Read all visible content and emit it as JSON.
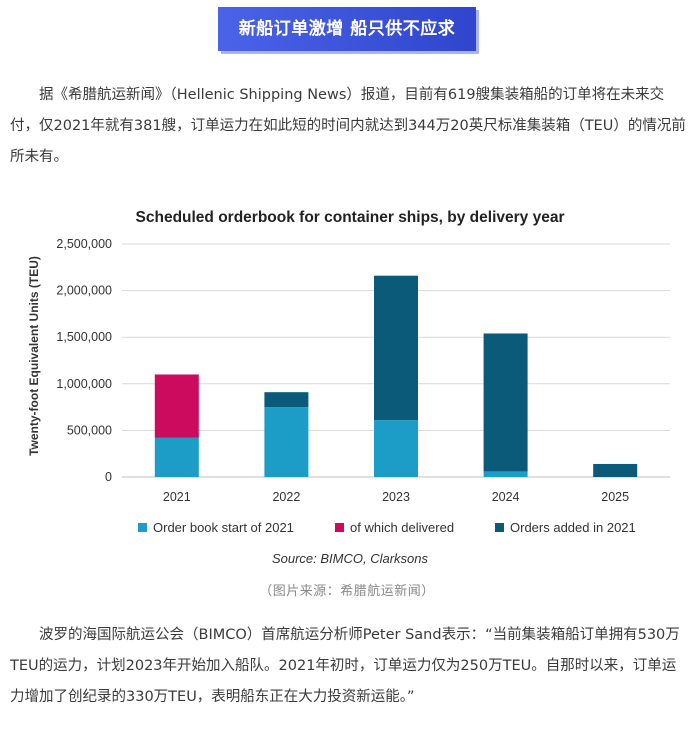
{
  "banner": {
    "title": "新船订单激增 船只供不应求"
  },
  "paragraph1": "据《希腊航运新闻》（Hellenic Shipping News）报道，目前有619艘集装箱船的订单将在未来交付，仅2021年就有381艘，订单运力在如此短的时间内就达到344万20英尺标准集装箱（TEU）的情况前所未有。",
  "caption": "（图片来源：希腊航运新闻）",
  "paragraph2": "波罗的海国际航运公会（BIMCO）首席航运分析师Peter Sand表示：“当前集装箱船订单拥有530万TEU的运力，计划2023年开始加入船队。2021年初时，订单运力仅为250万TEU。自那时以来，订单运力增加了创纪录的330万TEU，表明船东正在大力投资新运能。”",
  "chart_data": {
    "type": "bar",
    "stacked": true,
    "title": "Scheduled orderbook for container ships, by delivery year",
    "ylabel": "Twenty-foot Equivalent Units (TEU)",
    "xlabel": "",
    "source": "Source: BIMCO, Clarksons",
    "categories": [
      "2021",
      "2022",
      "2023",
      "2024",
      "2025"
    ],
    "ylim": [
      0,
      2500000
    ],
    "yticks": [
      0,
      500000,
      1000000,
      1500000,
      2000000,
      2500000
    ],
    "ytick_labels": [
      "0",
      "500,000",
      "1,000,000",
      "1,500,000",
      "2,000,000",
      "2,500,000"
    ],
    "grid": true,
    "legend_position": "bottom",
    "series": [
      {
        "name": "Order book start of 2021",
        "color": "#1b9dc7",
        "values": [
          420000,
          750000,
          610000,
          60000,
          0
        ]
      },
      {
        "name": "of which delivered",
        "color": "#cc0a5e",
        "values": [
          680000,
          0,
          0,
          0,
          0
        ]
      },
      {
        "name": "Orders added in 2021",
        "color": "#0b5a7a",
        "values": [
          0,
          160000,
          1550000,
          1480000,
          140000
        ]
      }
    ]
  }
}
